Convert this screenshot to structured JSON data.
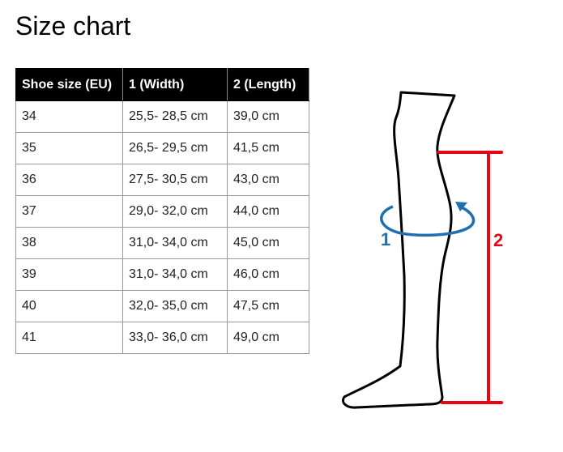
{
  "title": "Size chart",
  "table": {
    "headers": [
      "Shoe size (EU)",
      "1 (Width)",
      "2 (Length)"
    ],
    "rows": [
      [
        "34",
        "25,5- 28,5 cm",
        "39,0 cm"
      ],
      [
        "35",
        "26,5- 29,5 cm",
        "41,5 cm"
      ],
      [
        "36",
        "27,5- 30,5 cm",
        "43,0 cm"
      ],
      [
        "37",
        "29,0- 32,0 cm",
        "44,0 cm"
      ],
      [
        "38",
        "31,0- 34,0 cm",
        "45,0 cm"
      ],
      [
        "39",
        "31,0- 34,0 cm",
        "46,0 cm"
      ],
      [
        "40",
        "32,0- 35,0 cm",
        "47,5 cm"
      ],
      [
        "41",
        "33,0- 36,0 cm",
        "49,0 cm"
      ]
    ]
  },
  "diagram": {
    "width_label": "1",
    "length_label": "2",
    "width_color": "#1f6fb2",
    "length_color": "#e30613"
  }
}
